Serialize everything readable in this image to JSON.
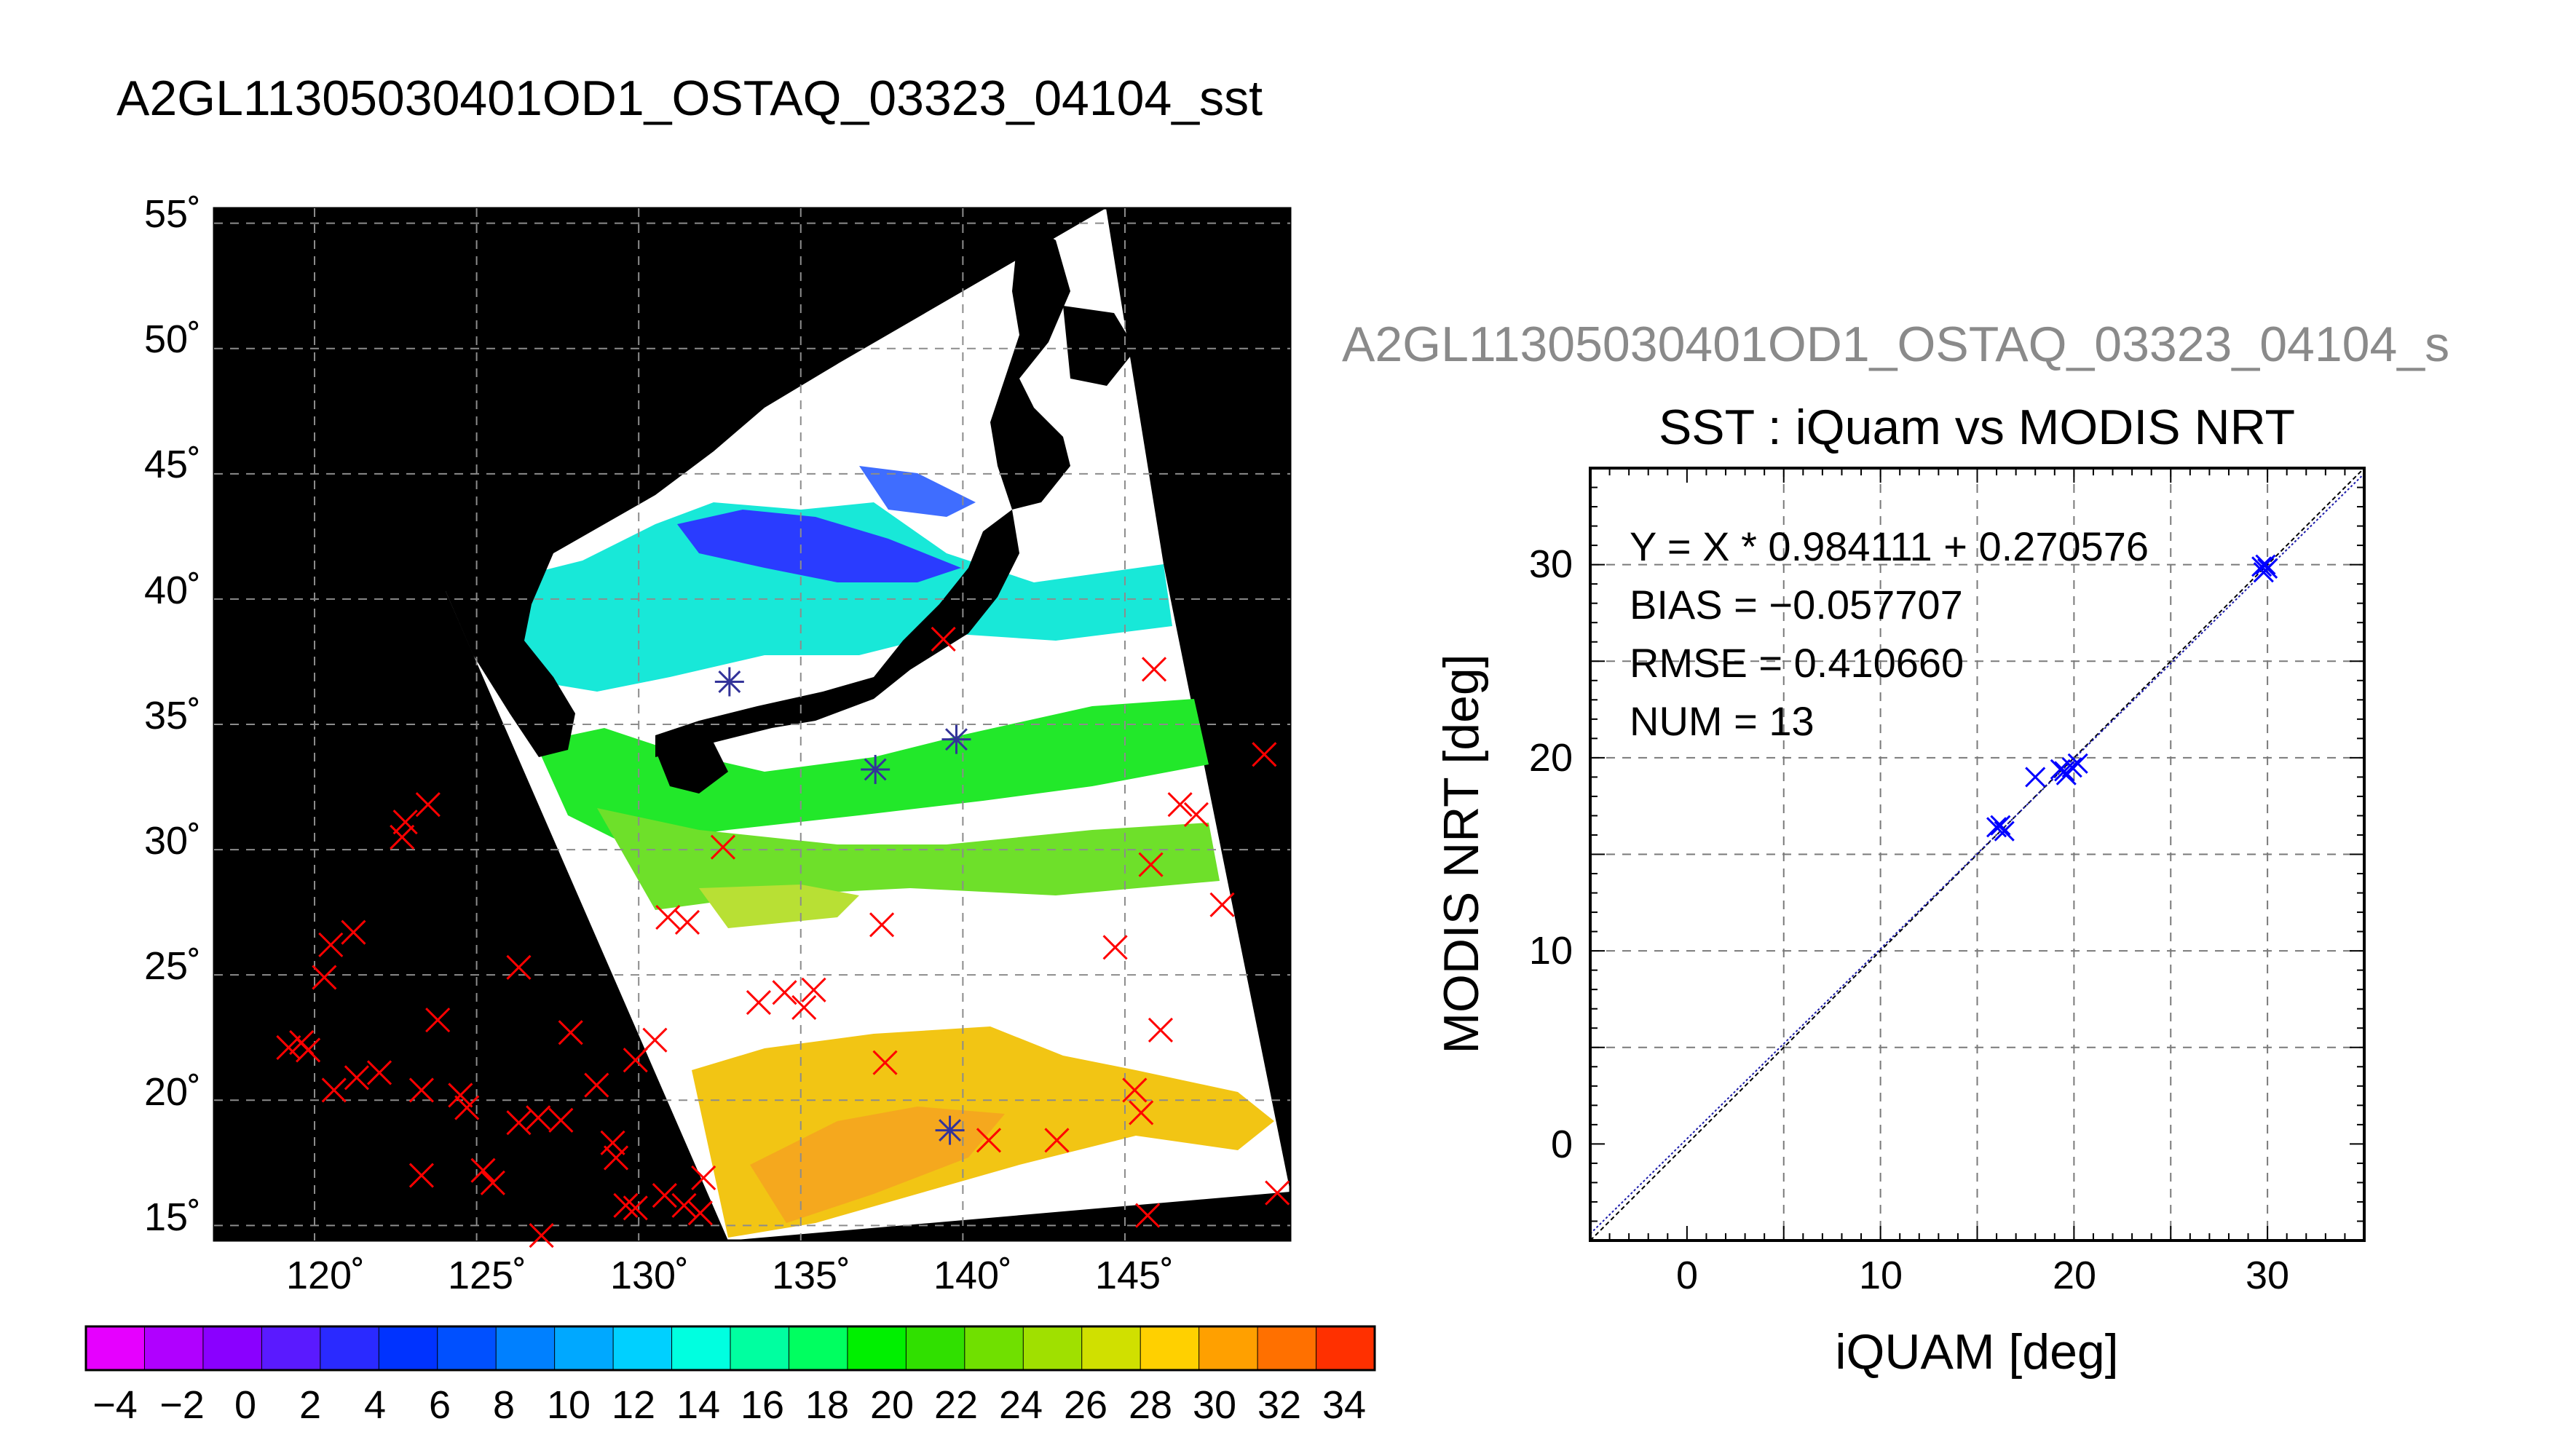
{
  "map_panel": {
    "title": "A2GL11305030401OD1_OSTAQ_03323_04104_sst",
    "lat_ticks": [
      "55˚",
      "50˚",
      "45˚",
      "40˚",
      "35˚",
      "30˚",
      "25˚",
      "20˚",
      "15˚"
    ],
    "lon_ticks": [
      "120˚",
      "125˚",
      "130˚",
      "135˚",
      "140˚",
      "145˚"
    ],
    "colorbar": {
      "tick_labels": [
        "−4",
        "−2",
        "0",
        "2",
        "4",
        "6",
        "8",
        "10",
        "12",
        "14",
        "16",
        "18",
        "20",
        "22",
        "24",
        "26",
        "28",
        "30",
        "32",
        "34"
      ],
      "colors": [
        "#e600ff",
        "#b000ff",
        "#8a00ff",
        "#5a1aff",
        "#2a2aff",
        "#0033ff",
        "#0050ff",
        "#0080ff",
        "#00a8ff",
        "#00d0ff",
        "#00ffe0",
        "#00ffa0",
        "#00ff60",
        "#00f000",
        "#30e000",
        "#70e000",
        "#a0e000",
        "#d0e000",
        "#ffd000",
        "#ffa000",
        "#ff7000",
        "#ff3000"
      ]
    },
    "in_situ_markers_color": "#ff0000",
    "matchup_markers_color": "#333399",
    "land_color": "#000000",
    "cloud_color": "#ffffff"
  },
  "scatter_panel": {
    "file_label": "A2GL11305030401OD1_OSTAQ_03323_04104_s",
    "title": "SST : iQuam vs MODIS NRT",
    "stats": {
      "fit": "Y = X * 0.984111 + 0.270576",
      "bias": "BIAS = −0.057707",
      "rmse": "RMSE = 0.410660",
      "num": "NUM = 13"
    }
  },
  "chart_data": {
    "type": "scatter",
    "title": "SST : iQuam vs MODIS NRT",
    "xlabel": "iQUAM [deg]",
    "ylabel": "MODIS NRT [deg]",
    "xlim": [
      -5,
      35
    ],
    "ylim": [
      -5,
      35
    ],
    "xticks": [
      0,
      10,
      20,
      30
    ],
    "yticks": [
      0,
      10,
      20,
      30
    ],
    "grid": true,
    "marker": "x",
    "marker_color": "#0000ff",
    "series": [
      {
        "points": [
          {
            "x": 16.0,
            "y": 16.4
          },
          {
            "x": 16.4,
            "y": 16.2
          },
          {
            "x": 18.0,
            "y": 19.0
          },
          {
            "x": 19.3,
            "y": 19.4
          },
          {
            "x": 19.6,
            "y": 19.1
          },
          {
            "x": 19.9,
            "y": 19.5
          },
          {
            "x": 20.2,
            "y": 19.7
          },
          {
            "x": 29.8,
            "y": 29.6
          },
          {
            "x": 29.9,
            "y": 30.0
          },
          {
            "x": 30.0,
            "y": 29.8
          },
          {
            "x": 19.5,
            "y": 19.3
          },
          {
            "x": 16.2,
            "y": 16.5
          },
          {
            "x": 29.7,
            "y": 29.9
          }
        ]
      }
    ],
    "fit_line": {
      "slope": 0.984111,
      "intercept": 0.270576
    },
    "identity_line": true
  }
}
